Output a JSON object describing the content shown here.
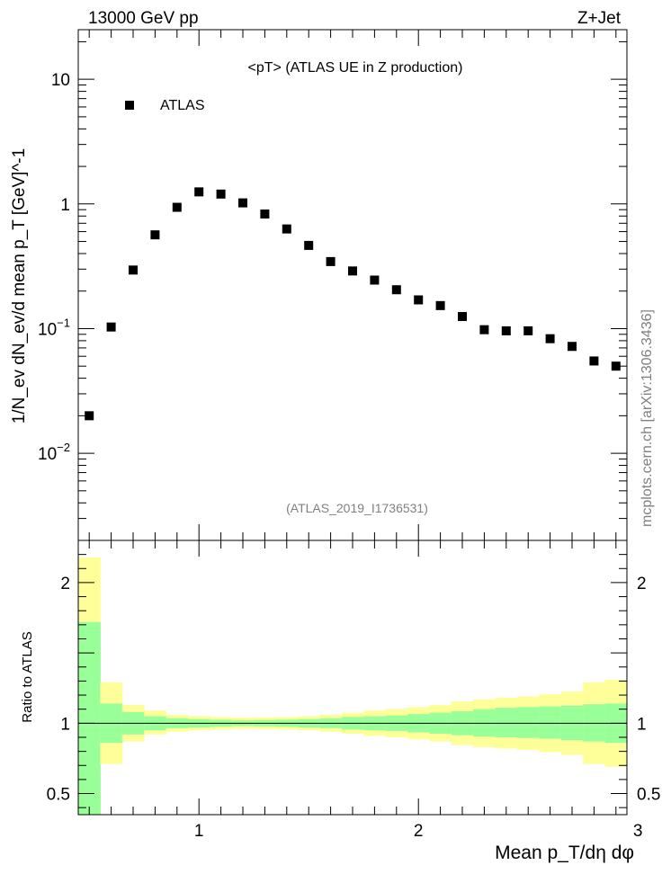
{
  "header": {
    "left": "13000 GeV pp",
    "right": "Z+Jet"
  },
  "watermark": "mcplots.cern.ch [arXiv:1306.3436]",
  "chart_data": {
    "type": "scatter",
    "title": "<pT> (ATLAS UE in Z production)",
    "analysis_label": "(ATLAS_2019_I1736531)",
    "ylabel_main": "1/N_ev dN_ev/d mean p_T [GeV]^-1",
    "ylabel_ratio": "Ratio to ATLAS",
    "xlabel": "Mean p_T/dη dφ",
    "legend": [
      "ATLAS"
    ],
    "xlim": [
      0.45,
      2.95
    ],
    "ylim": [
      0.002,
      25
    ],
    "yscale": "log",
    "x_ticks": [
      "1",
      "2",
      "3"
    ],
    "y_ticks": [
      "10^-2",
      "10^-1",
      "1",
      "10"
    ],
    "ratio_ylim": [
      0.35,
      2.3
    ],
    "ratio_ticks": [
      "0.5",
      "1",
      "2"
    ],
    "x": [
      0.5,
      0.6,
      0.7,
      0.8,
      0.9,
      1.0,
      1.1,
      1.2,
      1.3,
      1.4,
      1.5,
      1.6,
      1.7,
      1.8,
      1.9,
      2.0,
      2.1,
      2.2,
      2.3,
      2.4,
      2.5,
      2.6,
      2.7,
      2.8,
      2.9
    ],
    "values": [
      0.02,
      0.103,
      0.295,
      0.565,
      0.94,
      1.25,
      1.2,
      1.02,
      0.83,
      0.63,
      0.465,
      0.345,
      0.29,
      0.245,
      0.205,
      0.17,
      0.153,
      0.125,
      0.098,
      0.096,
      0.096,
      0.083,
      0.072,
      0.055,
      0.05
    ],
    "ratio_bands": {
      "bin_edges": [
        0.45,
        0.55,
        0.65,
        0.75,
        0.85,
        0.95,
        1.05,
        1.15,
        1.25,
        1.35,
        1.45,
        1.55,
        1.65,
        1.75,
        1.85,
        1.95,
        2.05,
        2.15,
        2.25,
        2.35,
        2.45,
        2.55,
        2.65,
        2.75,
        2.85,
        2.95
      ],
      "inner_lo": [
        0.35,
        0.86,
        0.92,
        0.95,
        0.965,
        0.97,
        0.975,
        0.98,
        0.978,
        0.975,
        0.97,
        0.965,
        0.955,
        0.95,
        0.945,
        0.935,
        0.925,
        0.915,
        0.905,
        0.9,
        0.895,
        0.89,
        0.88,
        0.87,
        0.86
      ],
      "inner_hi": [
        1.72,
        1.14,
        1.08,
        1.05,
        1.035,
        1.03,
        1.025,
        1.02,
        1.022,
        1.025,
        1.03,
        1.035,
        1.045,
        1.05,
        1.055,
        1.065,
        1.075,
        1.085,
        1.1,
        1.11,
        1.115,
        1.12,
        1.125,
        1.135,
        1.14
      ],
      "outer_lo": [
        0.35,
        0.71,
        0.87,
        0.92,
        0.94,
        0.95,
        0.955,
        0.96,
        0.958,
        0.955,
        0.95,
        0.94,
        0.925,
        0.91,
        0.9,
        0.885,
        0.87,
        0.845,
        0.83,
        0.82,
        0.81,
        0.795,
        0.775,
        0.71,
        0.69
      ],
      "outer_hi": [
        2.18,
        1.29,
        1.13,
        1.09,
        1.06,
        1.05,
        1.045,
        1.04,
        1.042,
        1.045,
        1.05,
        1.06,
        1.075,
        1.09,
        1.1,
        1.115,
        1.13,
        1.155,
        1.17,
        1.18,
        1.19,
        1.205,
        1.225,
        1.29,
        1.31
      ]
    }
  }
}
